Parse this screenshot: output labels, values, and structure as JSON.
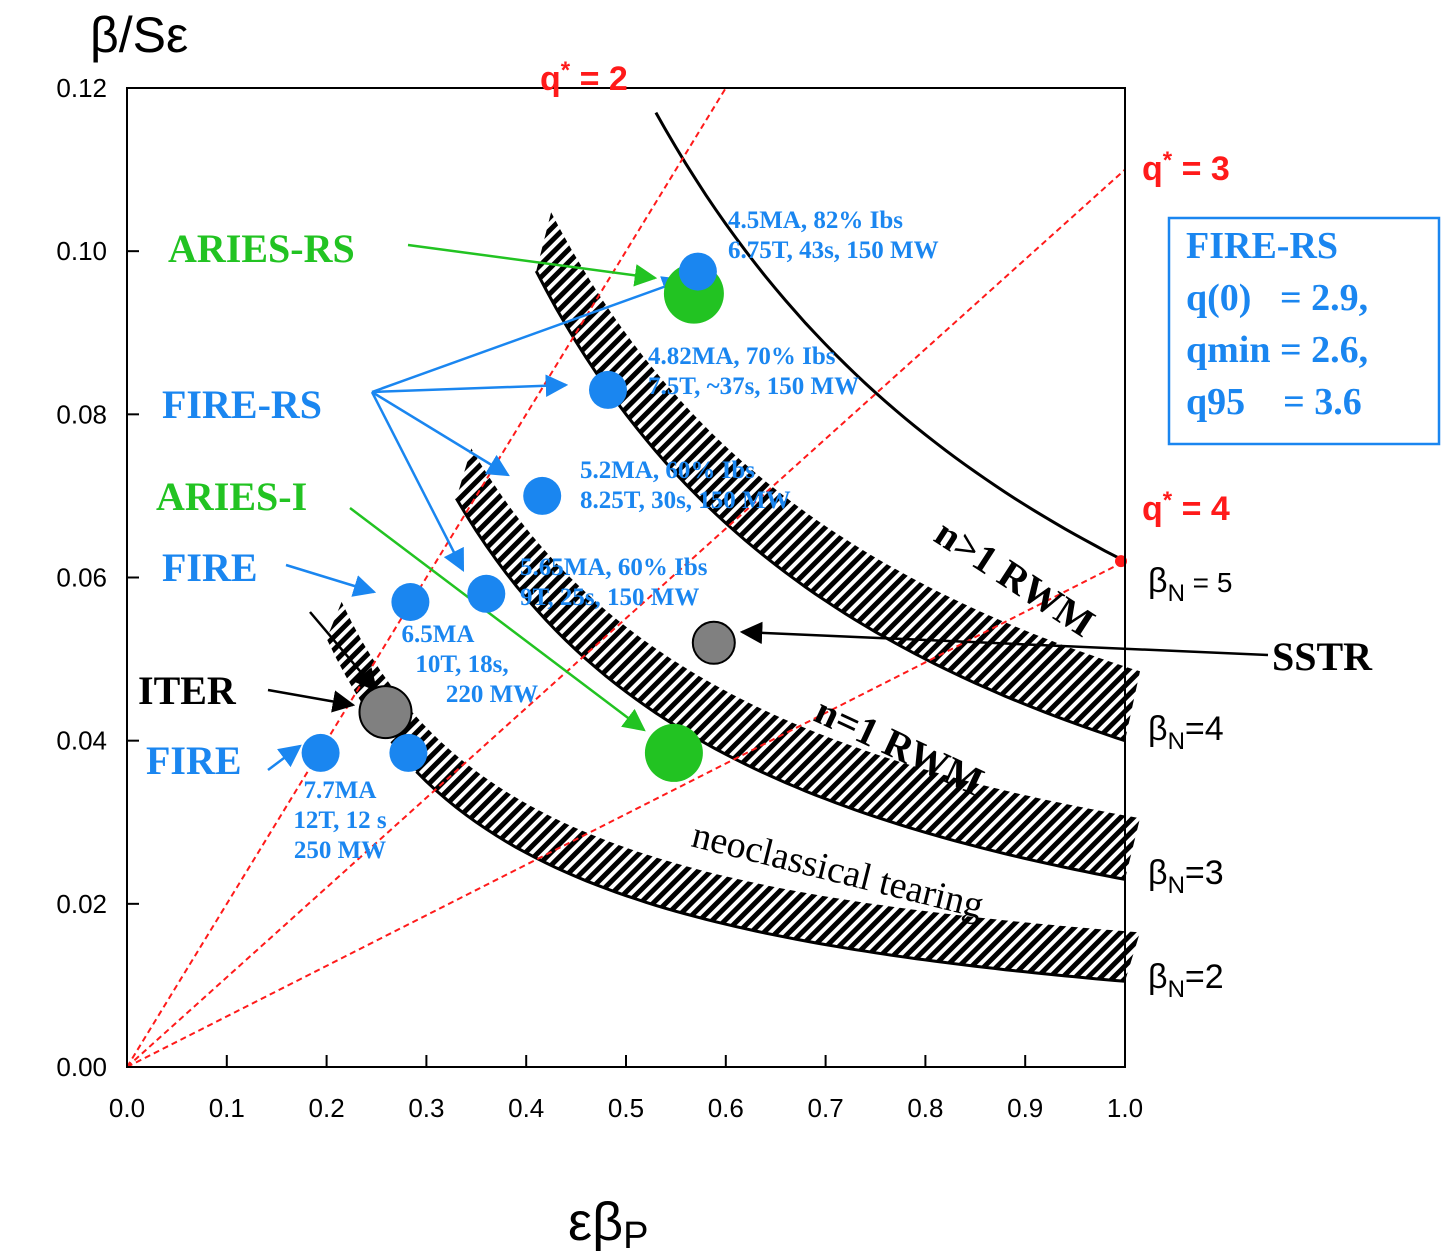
{
  "chart_data": {
    "type": "scatter",
    "title": "",
    "xlabel": "εβ",
    "xlabel_sub": "P",
    "ylabel": "β/Sε",
    "xlim": [
      0.0,
      1.0
    ],
    "ylim": [
      0.0,
      0.12
    ],
    "grid": false,
    "x_ticks": [
      "0.0",
      "0.1",
      "0.2",
      "0.3",
      "0.4",
      "0.5",
      "0.6",
      "0.7",
      "0.8",
      "0.9",
      "1.0"
    ],
    "y_ticks": [
      "0.00",
      "0.02",
      "0.04",
      "0.06",
      "0.08",
      "0.10",
      "0.12"
    ],
    "colors": {
      "fire": "#1a86f0",
      "aries": "#22c322",
      "q_lines": "#ff1a1a",
      "grey": "#808080"
    },
    "points": [
      {
        "group": "FIRE-RS",
        "x": 0.572,
        "y": 0.0975,
        "info": [
          "4.5MA, 82% Ibs",
          "6.75T, 43s, 150 MW"
        ]
      },
      {
        "group": "FIRE-RS",
        "x": 0.482,
        "y": 0.083,
        "info": [
          "4.82MA, 70% Ibs",
          "7.5T, ~37s, 150 MW"
        ]
      },
      {
        "group": "FIRE-RS",
        "x": 0.416,
        "y": 0.07,
        "info": [
          "5.2MA, 60% Ibs",
          "8.25T, 30s, 150 MW"
        ]
      },
      {
        "group": "FIRE-RS",
        "x": 0.36,
        "y": 0.058,
        "info": [
          "5.65MA, 60% Ibs",
          "9T, 25s, 150 MW"
        ]
      },
      {
        "group": "FIRE",
        "x": 0.284,
        "y": 0.057,
        "info": [
          "6.5MA",
          "10T, 18s,",
          "220 MW"
        ]
      },
      {
        "group": "FIRE",
        "x": 0.282,
        "y": 0.0385,
        "info": []
      },
      {
        "group": "FIRE",
        "x": 0.194,
        "y": 0.0385,
        "info": [
          "7.7MA",
          "12T, 12 s",
          "250 MW"
        ]
      },
      {
        "group": "ARIES-RS",
        "x": 0.568,
        "y": 0.0948,
        "info": []
      },
      {
        "group": "ARIES-I",
        "x": 0.548,
        "y": 0.0385,
        "info": []
      },
      {
        "group": "ITER",
        "x": 0.259,
        "y": 0.0435,
        "info": []
      },
      {
        "group": "SSTR",
        "x": 0.588,
        "y": 0.052,
        "info": []
      }
    ],
    "series_labels": [
      "ARIES-RS",
      "FIRE-RS",
      "ARIES-I",
      "FIRE",
      "ITER",
      "FIRE",
      "SSTR"
    ],
    "q_lines": [
      {
        "label_main": "q",
        "label_sup": "*",
        "label_rest": " = 2",
        "slope": 0.2
      },
      {
        "label_main": "q",
        "label_sup": "*",
        "label_rest": " = 3",
        "slope": 0.11
      },
      {
        "label_main": "q",
        "label_sup": "*",
        "label_rest": " = 4",
        "slope": 0.062
      }
    ],
    "beta_n_curves": [
      {
        "label_main": "β",
        "label_sub": "N",
        "label_rest": " = 5",
        "k": 0.062
      },
      {
        "label_main": "β",
        "label_sub": "N",
        "label_rest": "=4",
        "k": 0.04
      },
      {
        "label_main": "β",
        "label_sub": "N",
        "label_rest": "=3",
        "k": 0.023
      },
      {
        "label_main": "β",
        "label_sub": "N",
        "label_rest": "=2",
        "k": 0.0105
      }
    ],
    "bands": [
      "n>1 RWM",
      "n=1 RWM",
      "neoclassical tearing"
    ],
    "info_box": [
      "FIRE-RS",
      "q(0)   = 2.9,",
      "qmin = 2.6,",
      "q95    = 3.6"
    ]
  }
}
